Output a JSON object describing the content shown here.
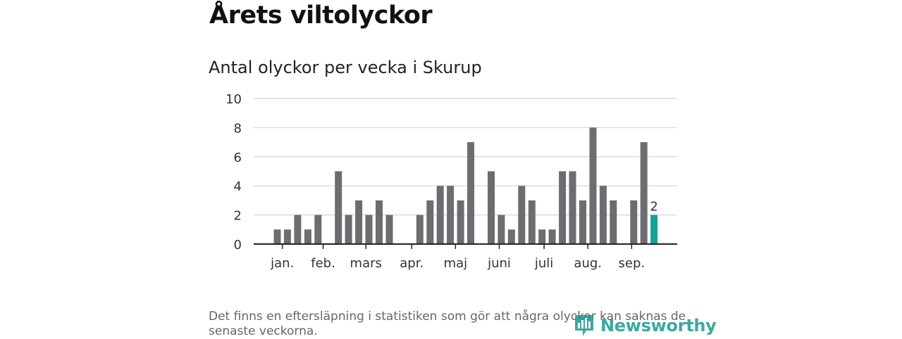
{
  "header": {
    "title": "Årets viltolyckor",
    "subtitle": "Antal olyckor per vecka i Skurup"
  },
  "chart_data": {
    "type": "bar",
    "title": "Antal olyckor per vecka i Skurup",
    "xlabel": "",
    "ylabel": "",
    "ylim": [
      0,
      10
    ],
    "yticks": [
      0,
      2,
      4,
      6,
      8,
      10
    ],
    "grid": true,
    "week_values": [
      1,
      1,
      2,
      1,
      2,
      0,
      5,
      2,
      3,
      2,
      3,
      2,
      0,
      0,
      2,
      3,
      4,
      4,
      3,
      7,
      0,
      5,
      2,
      1,
      4,
      3,
      1,
      1,
      5,
      5,
      3,
      8,
      4,
      3,
      0,
      3,
      7,
      2
    ],
    "month_labels": [
      "jan.",
      "feb.",
      "mars",
      "apr.",
      "maj",
      "juni",
      "juli",
      "aug.",
      "sep."
    ],
    "month_tick_weeks": [
      0.5,
      4.5,
      8.7,
      13.2,
      17.5,
      21.8,
      26.2,
      30.5,
      34.8
    ],
    "highlight_label": "2",
    "bar_color": "#6d6c71",
    "highlight_color": "#15a197"
  },
  "footnote": "Det finns en eftersläpning i statistiken som gör att några olyckor kan saknas de senaste veckorna.",
  "logo": {
    "text": "Newsworthy",
    "icon": "newsworthy-logo-icon",
    "color": "#1b9a90"
  }
}
